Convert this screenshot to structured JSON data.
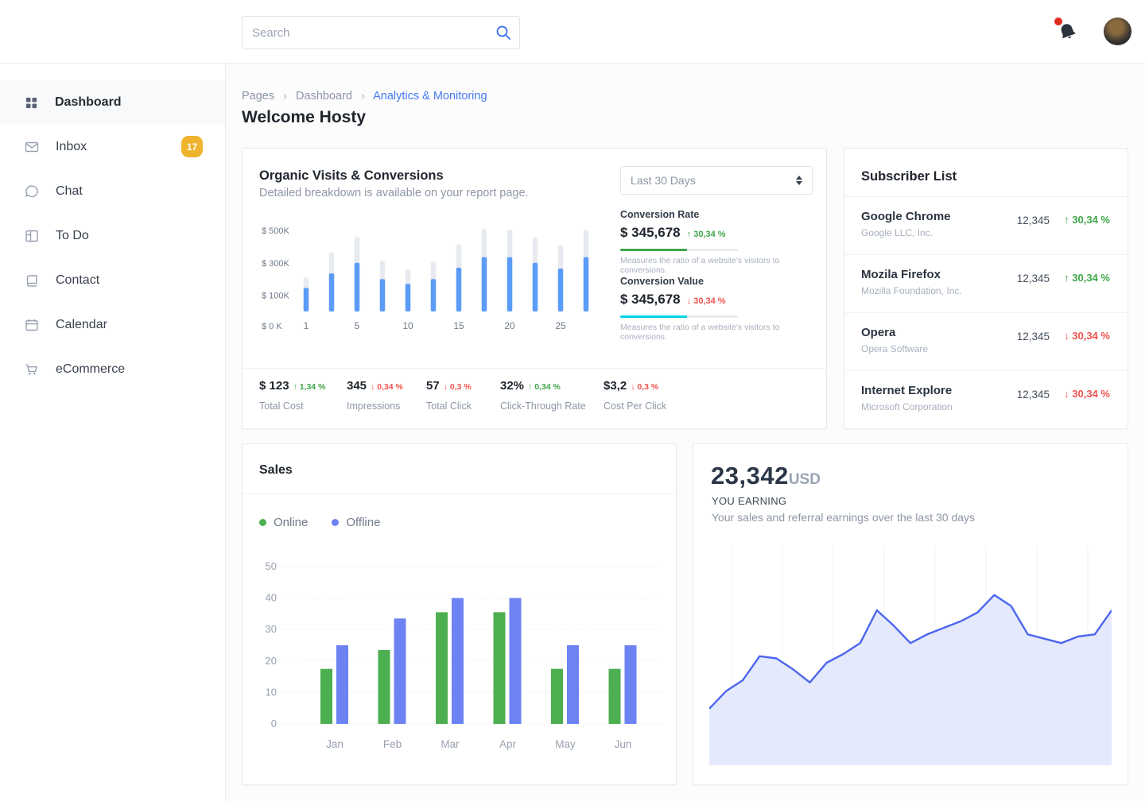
{
  "header": {
    "search_placeholder": "Search"
  },
  "sidebar": {
    "items": [
      {
        "label": "Dashboard",
        "icon": "grid-icon",
        "active": true
      },
      {
        "label": "Inbox",
        "icon": "mail-icon",
        "badge": "17"
      },
      {
        "label": "Chat",
        "icon": "chat-icon"
      },
      {
        "label": "To Do",
        "icon": "todo-icon"
      },
      {
        "label": "Contact",
        "icon": "contact-icon"
      },
      {
        "label": "Calendar",
        "icon": "calendar-icon"
      },
      {
        "label": "eCommerce",
        "icon": "cart-icon"
      }
    ]
  },
  "breadcrumb": {
    "items": [
      "Pages",
      "Dashboard"
    ],
    "current": "Analytics & Monitoring"
  },
  "page_title": "Welcome Hosty",
  "organic": {
    "title": "Organic Visits & Conversions",
    "subtitle": "Detailed breakdown is available on your report page.",
    "period": "Last 30 Days",
    "conversion_rate": {
      "label": "Conversion Rate",
      "value": "$ 345,678",
      "delta": "30,34 %",
      "direction": "up",
      "bar_pct": 57,
      "bar_color": "#3fa64b",
      "caption": "Measures the ratio of a website's visitors to conversions."
    },
    "conversion_value": {
      "label": "Conversion Value",
      "value": "$ 345,678",
      "delta": "30,34 %",
      "direction": "down",
      "bar_pct": 57,
      "bar_color": "#00d3e6",
      "caption": "Measures the ratio of a website's visitors to conversions."
    },
    "stats": [
      {
        "value": "$ 123",
        "delta": "1,34 %",
        "direction": "up",
        "label": "Total Cost"
      },
      {
        "value": "345",
        "delta": "0,34 %",
        "direction": "down",
        "label": "Impressions"
      },
      {
        "value": "57",
        "delta": "0,3 %",
        "direction": "down",
        "label": "Total Click"
      },
      {
        "value": "32%",
        "delta": "0,34 %",
        "direction": "up",
        "label": "Click-Through Rate"
      },
      {
        "value": "$3,2",
        "delta": "0,3 %",
        "direction": "down",
        "label": "Cost Per Click"
      }
    ]
  },
  "subscribers": {
    "title": "Subscriber List",
    "rows": [
      {
        "name": "Google Chrome",
        "company": "Google LLC, Inc.",
        "count": "12,345",
        "delta": "30,34 %",
        "direction": "up"
      },
      {
        "name": "Mozila Firefox",
        "company": "Mozilla Foundation, Inc.",
        "count": "12,345",
        "delta": "30,34 %",
        "direction": "up"
      },
      {
        "name": "Opera",
        "company": "Opera Software",
        "count": "12,345",
        "delta": "30,34 %",
        "direction": "down"
      },
      {
        "name": "Internet Explore",
        "company": "Microsoft Corporation",
        "count": "12,345",
        "delta": "30,34 %",
        "direction": "down"
      }
    ]
  },
  "sales": {
    "title": "Sales",
    "legend": [
      {
        "label": "Online",
        "color": "#4caf50"
      },
      {
        "label": "Offline",
        "color": "#6d83f3"
      }
    ]
  },
  "earning": {
    "amount": "23,342",
    "currency": "USD",
    "label": "YOU EARNING",
    "subtitle": "Your sales and referral earnings over the last 30 days"
  },
  "colors": {
    "accent_blue": "#4678f0",
    "bar_blue": "#5b9cf8",
    "bar_gray": "#e7eaef",
    "green": "#3fa64b",
    "red": "#ef5350",
    "badge_yellow": "#f0b32e",
    "area_line": "#4c66ee",
    "area_fill": "#e4e9fb"
  },
  "chart_data": [
    {
      "type": "bar",
      "title": "Organic Visits & Conversions",
      "x": [
        1,
        3,
        5,
        7.5,
        10,
        12.5,
        15,
        17.5,
        20,
        22.5,
        25,
        27.5
      ],
      "x_tick_labels": [
        "1",
        "5",
        "10",
        "15",
        "20",
        "25"
      ],
      "x_tick_indices": [
        0,
        2,
        4,
        6,
        8,
        10
      ],
      "series": [
        {
          "name": "Visits (total, gray)",
          "values": [
            210,
            365,
            460,
            315,
            260,
            310,
            415,
            510,
            505,
            460,
            410,
            505
          ]
        },
        {
          "name": "Conversions (blue)",
          "values": [
            145,
            235,
            300,
            200,
            170,
            200,
            270,
            335,
            335,
            300,
            265,
            335
          ]
        }
      ],
      "ylabel": "$K",
      "ylim": [
        0,
        500
      ],
      "y_tick_labels": [
        "$ 500K",
        "$ 300K",
        "$ 100K",
        "$ 0 K"
      ],
      "y_tick_values": [
        500,
        300,
        100,
        0
      ],
      "grid": false,
      "legend_position": "none"
    },
    {
      "type": "bar",
      "title": "Sales",
      "categories": [
        "Jan",
        "Feb",
        "Mar",
        "Apr",
        "May",
        "Jun"
      ],
      "series": [
        {
          "name": "Online",
          "values": [
            17.5,
            23.5,
            35.5,
            35.5,
            17.5,
            17.5
          ]
        },
        {
          "name": "Offline",
          "values": [
            25,
            33.5,
            40,
            40,
            25,
            25
          ]
        }
      ],
      "ylim": [
        0,
        50
      ],
      "y_ticks": [
        0,
        10,
        20,
        30,
        40,
        50
      ],
      "grid": true,
      "legend_position": "top-left"
    },
    {
      "type": "area",
      "title": "Earnings over last 30 days",
      "values": [
        27,
        35,
        40,
        51,
        50,
        45,
        39,
        48,
        52,
        57,
        72,
        65,
        57,
        61,
        64,
        67,
        71,
        79,
        74,
        61,
        59,
        57,
        60,
        61,
        72
      ],
      "ylim": [
        0,
        100
      ],
      "grid": "vertical-only",
      "legend_position": "none"
    }
  ]
}
